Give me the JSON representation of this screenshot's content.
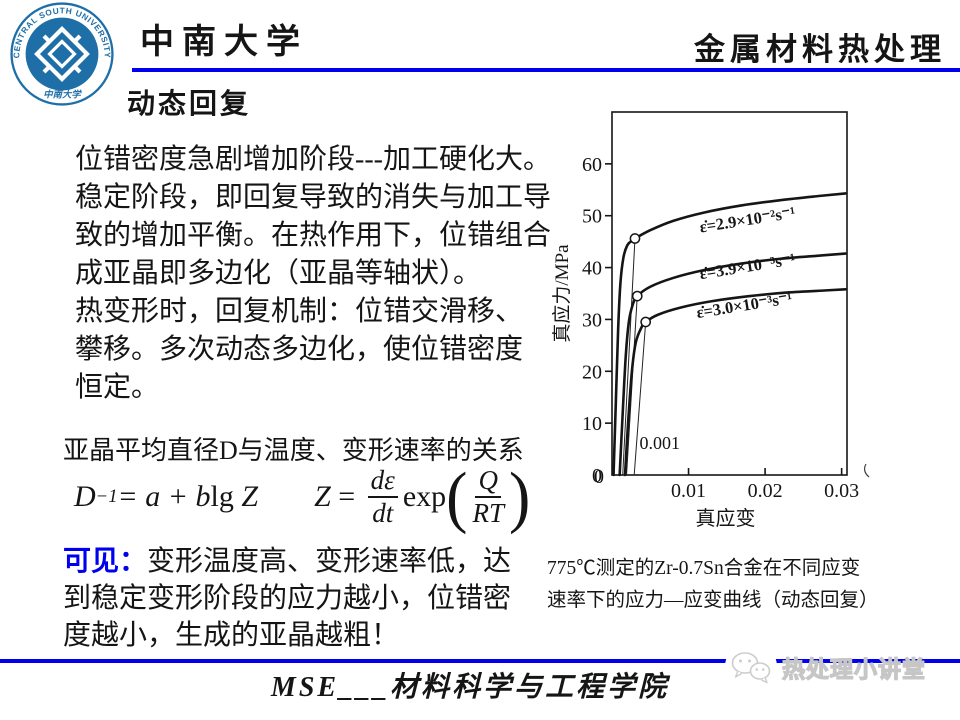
{
  "header": {
    "university": "中南大学",
    "course": "金属材料热处理"
  },
  "logo": {
    "ring_text": "CENTRAL SOUTH UNIVERSITY",
    "seal_text": "中南大学",
    "blue": "#1E6FA8"
  },
  "title": "动态回复",
  "body": {
    "p1_lines": [
      "位错密度急剧增加阶段---加工硬化大。",
      "稳定阶段，即回复导致的消失与加工导",
      "致的增加平衡。在热作用下，位错组合",
      "成亚晶即多边化（亚晶等轴状）。"
    ],
    "p2_lines": [
      "热变形时，回复机制：位错交滑移、",
      "攀移。多次动态多边化，使位错密度",
      "恒定。"
    ],
    "subheading": "亚晶平均直径D与温度、变形速率的关系",
    "conclusion_label": "可见：",
    "conclusion_lines": [
      "变形温度高、变形速率低，达",
      "到稳定变形阶段的应力越小，位错密",
      "度越小，生成的亚晶越粗！"
    ]
  },
  "formula1": {
    "var": "D",
    "sup": "−1",
    "mid": " = a + b ",
    "lg": "lg",
    "z": "Z"
  },
  "formula2": {
    "z": "Z",
    "eq": "=",
    "num": "dε",
    "den": "dt",
    "exp": "exp",
    "pnum": "Q",
    "pden": "RT"
  },
  "chart_data": {
    "type": "line",
    "xlabel": "真应变",
    "ylabel": "真应力/MPa",
    "xlim": [
      0,
      0.0307
    ],
    "ylim": [
      0,
      70
    ],
    "xticks": [
      0.01,
      0.02,
      0.03
    ],
    "yticks": [
      0,
      10,
      20,
      30,
      40,
      50,
      60
    ],
    "grid": false,
    "series": [
      {
        "name": "ε̇=2.9×10⁻²s⁻¹",
        "points": [
          [
            0.0002,
            0
          ],
          [
            0.0005,
            14
          ],
          [
            0.0008,
            28
          ],
          [
            0.0011,
            37
          ],
          [
            0.0015,
            42
          ],
          [
            0.002,
            44.3
          ],
          [
            0.0026,
            45.2
          ],
          [
            0.003,
            45.6
          ],
          [
            0.005,
            47.2
          ],
          [
            0.008,
            49.0
          ],
          [
            0.012,
            50.6
          ],
          [
            0.017,
            52.0
          ],
          [
            0.022,
            53.0
          ],
          [
            0.027,
            53.8
          ],
          [
            0.0305,
            54.3
          ]
        ],
        "label_pos": [
          0.0178,
          48.2
        ],
        "label_rot": -9
      },
      {
        "name": "ε̇=3.9×10⁻³s⁻¹",
        "points": [
          [
            0.001,
            0
          ],
          [
            0.0014,
            12
          ],
          [
            0.0018,
            23
          ],
          [
            0.0022,
            29.5
          ],
          [
            0.0027,
            32.8
          ],
          [
            0.0033,
            34.5
          ],
          [
            0.005,
            36.3
          ],
          [
            0.008,
            38.0
          ],
          [
            0.012,
            39.5
          ],
          [
            0.017,
            40.8
          ],
          [
            0.022,
            41.7
          ],
          [
            0.027,
            42.3
          ],
          [
            0.0305,
            42.7
          ]
        ],
        "label_pos": [
          0.0178,
          39.2
        ],
        "label_rot": -9
      },
      {
        "name": "ε̇=3.0×10⁻³s⁻¹",
        "points": [
          [
            0.0017,
            0
          ],
          [
            0.0021,
            10
          ],
          [
            0.0026,
            20
          ],
          [
            0.0031,
            25.5
          ],
          [
            0.0038,
            28.3
          ],
          [
            0.0044,
            29.5
          ],
          [
            0.006,
            30.9
          ],
          [
            0.009,
            32.3
          ],
          [
            0.013,
            33.5
          ],
          [
            0.018,
            34.5
          ],
          [
            0.023,
            35.2
          ],
          [
            0.028,
            35.6
          ],
          [
            0.0305,
            35.8
          ]
        ],
        "label_pos": [
          0.0174,
          31.7
        ],
        "label_rot": -9
      }
    ],
    "yield_points": [
      [
        0.003,
        45.6
      ],
      [
        0.0033,
        34.5
      ],
      [
        0.0044,
        29.5
      ]
    ],
    "offset_lines": [
      [
        0.0014,
        0,
        0.003,
        45.6
      ],
      [
        0.0019,
        0,
        0.0033,
        34.5
      ],
      [
        0.0029,
        0,
        0.0044,
        29.5
      ]
    ],
    "annotation": {
      "text": "0.001",
      "x": 0.0036,
      "y": 5.0
    },
    "origin_label": "0"
  },
  "caption_lines": [
    "775℃测定的Zr-0.7Sn合金在不同应变",
    "速率下的应力—应变曲线（动态回复）"
  ],
  "footer": {
    "school": "MSE___材料科学与工程学院"
  },
  "watermark": {
    "text": "热处理小讲堂"
  },
  "colors": {
    "accent_blue": "#0000EE",
    "logo_blue": "#1E6FA8",
    "ink": "#151515"
  }
}
